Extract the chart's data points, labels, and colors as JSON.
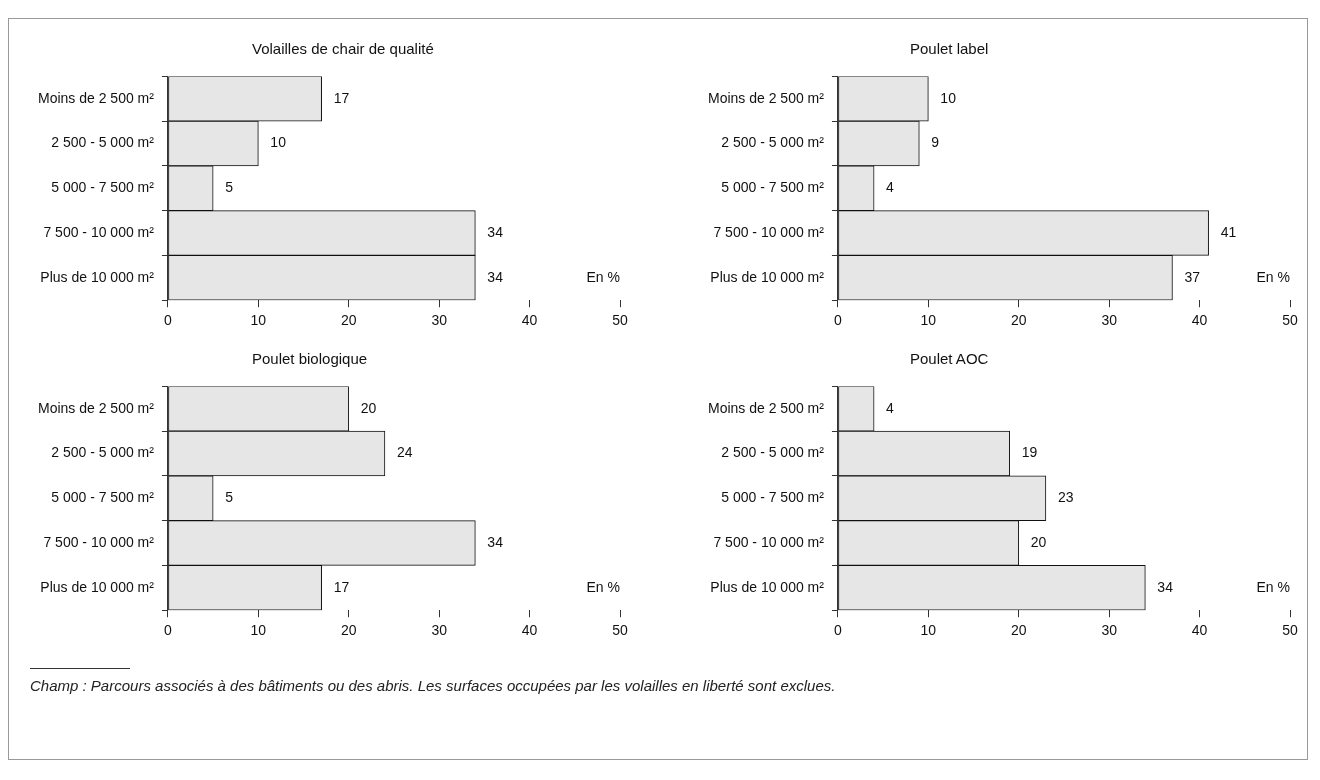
{
  "chart_data": [
    {
      "type": "bar",
      "orientation": "horizontal",
      "title": "Volailles de chair de qualité",
      "categories": [
        "Moins de 2 500 m²",
        "2 500 - 5 000 m²",
        "5 000 - 7 500 m²",
        "7 500 - 10 000 m²",
        "Plus de 10 000 m²"
      ],
      "values": [
        17,
        10,
        5,
        34,
        34
      ],
      "color": "#e6e6e6",
      "xlim": [
        0,
        50
      ],
      "xticks": [
        0,
        10,
        20,
        30,
        40,
        50
      ],
      "data_labels": true,
      "grid": false,
      "legend": false,
      "annotations": [
        "En %"
      ]
    },
    {
      "type": "bar",
      "orientation": "horizontal",
      "title": "Poulet label",
      "categories": [
        "Moins de 2 500 m²",
        "2 500 - 5 000 m²",
        "5 000 - 7 500 m²",
        "7 500 - 10 000 m²",
        "Plus de 10 000 m²"
      ],
      "values": [
        10,
        9,
        4,
        41,
        37
      ],
      "color": "#e6e6e6",
      "xlim": [
        0,
        50
      ],
      "xticks": [
        0,
        10,
        20,
        30,
        40,
        50
      ],
      "data_labels": true,
      "grid": false,
      "legend": false,
      "annotations": [
        "En %"
      ]
    },
    {
      "type": "bar",
      "orientation": "horizontal",
      "title": "Poulet biologique",
      "categories": [
        "Moins de 2 500 m²",
        "2 500 - 5 000 m²",
        "5 000 - 7 500 m²",
        "7 500 - 10 000 m²",
        "Plus de 10 000 m²"
      ],
      "values": [
        20,
        24,
        5,
        34,
        17
      ],
      "color": "#e6e6e6",
      "xlim": [
        0,
        50
      ],
      "xticks": [
        0,
        10,
        20,
        30,
        40,
        50
      ],
      "data_labels": true,
      "grid": false,
      "legend": false,
      "annotations": [
        "En %"
      ]
    },
    {
      "type": "bar",
      "orientation": "horizontal",
      "title": "Poulet AOC",
      "categories": [
        "Moins de 2 500 m²",
        "2 500 - 5 000 m²",
        "5 000 - 7 500 m²",
        "7 500 - 10 000 m²",
        "Plus de 10 000 m²"
      ],
      "values": [
        4,
        19,
        23,
        20,
        34
      ],
      "color": "#e6e6e6",
      "xlim": [
        0,
        50
      ],
      "xticks": [
        0,
        10,
        20,
        30,
        40,
        50
      ],
      "data_labels": true,
      "grid": false,
      "legend": false,
      "annotations": [
        "En %",
        "Champ : Parcours associés à des bâtiments ou des abris. Les surfaces occupées par les volailles en liberté sont exclues."
      ]
    }
  ]
}
